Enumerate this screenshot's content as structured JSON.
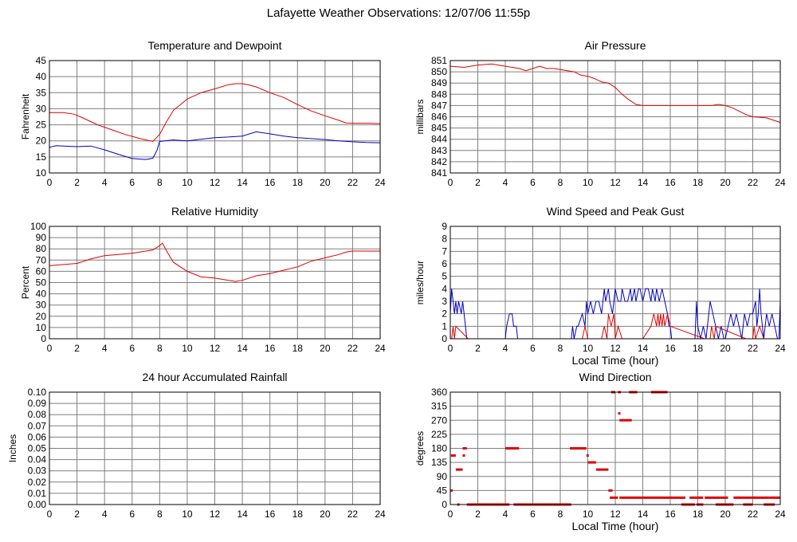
{
  "title": "Lafayette Weather Observations: 12/07/06 11:55p",
  "colors": {
    "red": "#e00000",
    "blue": "#0000c0",
    "grid": "#7f7f7f"
  },
  "chart_data": [
    {
      "id": "temp",
      "type": "line",
      "title": "Temperature and Dewpoint",
      "xlabel": "",
      "ylabel": "Fahrenheit",
      "xlim": [
        0,
        24
      ],
      "ylim": [
        10,
        45
      ],
      "xticks": [
        0,
        2,
        4,
        6,
        8,
        10,
        12,
        14,
        16,
        18,
        20,
        22,
        24
      ],
      "yticks": [
        10,
        15,
        20,
        25,
        30,
        35,
        40,
        45
      ],
      "ytick_labels": [
        "10",
        "15",
        "20",
        "25",
        "30",
        "35",
        "40",
        "45"
      ],
      "grid": true,
      "series": [
        {
          "color": "red",
          "x": [
            0,
            1,
            1.8,
            2.5,
            3.5,
            4.5,
            5.5,
            6.5,
            7.5,
            8,
            8.5,
            9,
            10,
            11,
            12,
            13,
            13.5,
            14,
            14.5,
            15,
            16,
            17,
            18,
            19,
            20,
            21,
            21.5,
            22,
            23,
            24
          ],
          "y": [
            28.8,
            28.8,
            28.3,
            27,
            25,
            23.5,
            22,
            20.8,
            19.8,
            22,
            26,
            29.5,
            33,
            35,
            36.2,
            37.5,
            37.8,
            37.8,
            37.4,
            36.8,
            35,
            33.5,
            31.3,
            29.3,
            27.8,
            26.4,
            25.6,
            25.5,
            25.5,
            25.4
          ]
        },
        {
          "color": "blue",
          "x": [
            0,
            0.5,
            1,
            2,
            3,
            4,
            5,
            6,
            7,
            7.5,
            7.8,
            8,
            9,
            10,
            11,
            12,
            13,
            14,
            15,
            16,
            17,
            18,
            19,
            20,
            21,
            22,
            23,
            24
          ],
          "y": [
            18,
            18.5,
            18.4,
            18.2,
            18.4,
            17.2,
            15.8,
            14.5,
            14.2,
            14.6,
            17,
            19.8,
            20.3,
            20,
            20.5,
            21,
            21.2,
            21.5,
            22.8,
            22.2,
            21.5,
            21,
            20.7,
            20.4,
            20,
            19.7,
            19.5,
            19.4
          ]
        }
      ]
    },
    {
      "id": "pressure",
      "type": "line",
      "title": "Air Pressure",
      "xlabel": "",
      "ylabel": "millibars",
      "xlim": [
        0,
        24
      ],
      "ylim": [
        841,
        851
      ],
      "xticks": [
        0,
        2,
        4,
        6,
        8,
        10,
        12,
        14,
        16,
        18,
        20,
        22,
        24
      ],
      "yticks": [
        841,
        842,
        843,
        844,
        845,
        846,
        847,
        848,
        849,
        850,
        851
      ],
      "ytick_labels": [
        "841",
        "842",
        "843",
        "844",
        "845",
        "846",
        "847",
        "848",
        "849",
        "850",
        "851"
      ],
      "grid": true,
      "series": [
        {
          "color": "red",
          "x": [
            0,
            1,
            2,
            3,
            4,
            5,
            5.5,
            6,
            6.5,
            7,
            7.5,
            8,
            9,
            9.5,
            10,
            10.5,
            11,
            11.5,
            12,
            12.5,
            13,
            13.5,
            14,
            15,
            16,
            17,
            18,
            19,
            19.5,
            20,
            20.5,
            21,
            21.5,
            22,
            23,
            24
          ],
          "y": [
            850.5,
            850.4,
            850.6,
            850.7,
            850.5,
            850.3,
            850.1,
            850.3,
            850.5,
            850.3,
            850.3,
            850.2,
            850,
            849.7,
            849.6,
            849.4,
            849.1,
            849,
            848.6,
            848,
            847.5,
            847.1,
            847,
            847,
            847,
            847,
            847,
            847,
            847.1,
            847,
            846.8,
            846.5,
            846.2,
            846,
            845.9,
            845.5
          ]
        }
      ]
    },
    {
      "id": "humidity",
      "type": "line",
      "title": "Relative Humidity",
      "xlabel": "",
      "ylabel": "Percent",
      "xlim": [
        0,
        24
      ],
      "ylim": [
        0,
        100
      ],
      "xticks": [
        0,
        2,
        4,
        6,
        8,
        10,
        12,
        14,
        16,
        18,
        20,
        22,
        24
      ],
      "yticks": [
        0,
        10,
        20,
        30,
        40,
        50,
        60,
        70,
        80,
        90,
        100
      ],
      "ytick_labels": [
        "0",
        "10",
        "20",
        "30",
        "40",
        "50",
        "60",
        "70",
        "80",
        "90",
        "100"
      ],
      "grid": true,
      "series": [
        {
          "color": "red",
          "x": [
            0,
            1,
            2,
            3,
            4,
            5,
            6,
            7,
            7.5,
            7.9,
            8.2,
            8.6,
            9,
            10,
            11,
            12,
            13,
            13.5,
            14,
            15,
            16,
            17,
            18,
            19,
            20,
            21,
            21.5,
            22,
            23,
            24
          ],
          "y": [
            65,
            66,
            67,
            71,
            74,
            75,
            76,
            78,
            79,
            82,
            85,
            76,
            68,
            60,
            55,
            54,
            52,
            51,
            52,
            56,
            58,
            61,
            64,
            69,
            72,
            75,
            77,
            78,
            78,
            78
          ]
        }
      ]
    },
    {
      "id": "wind",
      "type": "line",
      "title": "Wind Speed and Peak Gust",
      "xlabel": "Local Time (hour)",
      "ylabel": "miles/hour",
      "xlim": [
        0,
        24
      ],
      "ylim": [
        0,
        9
      ],
      "xticks": [
        0,
        2,
        4,
        6,
        8,
        10,
        12,
        14,
        16,
        18,
        20,
        22,
        24
      ],
      "yticks": [
        0,
        1,
        2,
        3,
        4,
        5,
        6,
        7,
        8,
        9
      ],
      "ytick_labels": [
        "0",
        "1",
        "2",
        "3",
        "4",
        "5",
        "6",
        "7",
        "8",
        "9"
      ],
      "grid": true,
      "series": [
        {
          "color": "blue",
          "x": [
            0,
            0.1,
            0.2,
            0.3,
            0.4,
            0.5,
            0.6,
            0.8,
            0.9,
            1,
            1.1,
            1.2,
            1.3,
            4,
            4.1,
            4.3,
            4.5,
            4.6,
            4.8,
            4.9,
            5,
            8.8,
            8.9,
            9,
            9.2,
            9.3,
            9.6,
            9.8,
            9.9,
            10,
            10.2,
            10.4,
            10.6,
            10.8,
            11,
            11.2,
            11.3,
            11.5,
            11.6,
            11.8,
            12,
            12.2,
            12.4,
            12.5,
            12.7,
            12.9,
            13.1,
            13.2,
            13.4,
            13.5,
            13.7,
            13.8,
            14,
            14.2,
            14.4,
            14.6,
            14.7,
            14.9,
            15,
            15.2,
            15.4,
            15.6,
            15.8,
            15.9,
            16,
            16.1,
            16.3,
            16.5,
            17.8,
            17.9,
            18,
            18.2,
            18.4,
            18.6,
            18.8,
            18.9,
            19.1,
            19.3,
            19.5,
            19.7,
            19.9,
            20,
            20.2,
            20.4,
            20.6,
            20.8,
            21,
            21.2,
            21.4,
            21.6,
            21.8,
            22,
            22.2,
            22.3,
            22.4,
            22.5,
            22.6,
            22.7,
            22.8,
            23,
            23.2,
            23.4,
            23.6,
            23.8,
            23.9,
            24
          ],
          "y": [
            2,
            4,
            3,
            2,
            3,
            2,
            3,
            2,
            3,
            2,
            1,
            0,
            0,
            0,
            1,
            2,
            2,
            1,
            1,
            0,
            0,
            0,
            1,
            0,
            1,
            1,
            2,
            1,
            3,
            2,
            3,
            2,
            3,
            3,
            2,
            4,
            3,
            4,
            3,
            2,
            4,
            3,
            3,
            4,
            3,
            3,
            4,
            3,
            4,
            3,
            4,
            4,
            3,
            4,
            4,
            3,
            4,
            3,
            4,
            3,
            4,
            3,
            2,
            1,
            1,
            0,
            0,
            0,
            0,
            3,
            1,
            0,
            1,
            0,
            2,
            3,
            2,
            1,
            0,
            1,
            0,
            0,
            1,
            2,
            1,
            2,
            1,
            0,
            2,
            1,
            2,
            2,
            3,
            1,
            2,
            4,
            2,
            1,
            0,
            2,
            1,
            2,
            1,
            0,
            0,
            3
          ]
        },
        {
          "color": "red",
          "x": [
            0,
            0.1,
            0.2,
            0.3,
            0.4,
            1.3,
            9.6,
            9.8,
            10,
            11,
            11.2,
            11.4,
            11.5,
            11.7,
            11.9,
            12,
            12.2,
            12.5,
            13,
            13.5,
            14,
            14.6,
            14.8,
            15,
            15.1,
            15.2,
            15.3,
            15.4,
            15.5,
            15.6,
            15.8,
            16,
            18.5,
            18.9,
            19,
            19.2,
            19.3,
            21.5,
            22,
            22.1,
            22.2,
            22.5,
            22.8,
            24
          ],
          "y": [
            0,
            0,
            1,
            0,
            1,
            0,
            0,
            1,
            0,
            0,
            1,
            0,
            2,
            1,
            2,
            0,
            1,
            0,
            0,
            0,
            0,
            1,
            2,
            1,
            2,
            1,
            2,
            1,
            2,
            1,
            2,
            1,
            0,
            0,
            1,
            0,
            1,
            0,
            0,
            1,
            0,
            1,
            0,
            0
          ]
        }
      ]
    },
    {
      "id": "rain",
      "type": "line",
      "title": "24 hour Accumulated Rainfall",
      "xlabel": "",
      "ylabel": "Inches",
      "xlim": [
        0,
        24
      ],
      "ylim": [
        0,
        0.1
      ],
      "xticks": [
        0,
        2,
        4,
        6,
        8,
        10,
        12,
        14,
        16,
        18,
        20,
        22,
        24
      ],
      "yticks": [
        0,
        0.01,
        0.02,
        0.03,
        0.04,
        0.05,
        0.06,
        0.07,
        0.08,
        0.09,
        0.1
      ],
      "ytick_labels": [
        "0.00",
        "0.01",
        "0.02",
        "0.03",
        "0.04",
        "0.05",
        "0.06",
        "0.07",
        "0.08",
        "0.09",
        "0.10"
      ],
      "grid": true,
      "series": [
        {
          "color": "red",
          "x": [
            0,
            24
          ],
          "y": [
            0,
            0
          ]
        }
      ]
    },
    {
      "id": "dir",
      "type": "scatter",
      "title": "Wind Direction",
      "xlabel": "Local Time (hour)",
      "ylabel": "degrees",
      "xlim": [
        0,
        24
      ],
      "ylim": [
        0,
        360
      ],
      "xticks": [
        0,
        2,
        4,
        6,
        8,
        10,
        12,
        14,
        16,
        18,
        20,
        22,
        24
      ],
      "yticks": [
        0,
        45,
        90,
        135,
        180,
        225,
        270,
        315,
        360
      ],
      "ytick_labels": [
        "0",
        "45",
        "90",
        "135",
        "180",
        "225",
        "270",
        "315",
        "360"
      ],
      "grid": true,
      "segments": [
        [
          0,
          0.05,
          45
        ],
        [
          0.05,
          0.4,
          157
        ],
        [
          0.4,
          0.9,
          112
        ],
        [
          0.5,
          0.55,
          0
        ],
        [
          0.9,
          1.2,
          180
        ],
        [
          0.9,
          0.95,
          157
        ],
        [
          1.2,
          4.3,
          0
        ],
        [
          4,
          5,
          180
        ],
        [
          4.6,
          8.8,
          0
        ],
        [
          8.7,
          9.9,
          180
        ],
        [
          9.9,
          10,
          157
        ],
        [
          10,
          10.6,
          135
        ],
        [
          10.6,
          11.5,
          112
        ],
        [
          11.5,
          11.8,
          45
        ],
        [
          11.6,
          11.9,
          22
        ],
        [
          11.7,
          12,
          360
        ],
        [
          11.9,
          12.2,
          22
        ],
        [
          12.2,
          12.3,
          292
        ],
        [
          12.3,
          13.2,
          270
        ],
        [
          12.2,
          12.4,
          360
        ],
        [
          13,
          13.6,
          360
        ],
        [
          14.6,
          15.8,
          360
        ],
        [
          12.3,
          16.2,
          22
        ],
        [
          16.2,
          17.1,
          22
        ],
        [
          16.8,
          17.8,
          0
        ],
        [
          17.4,
          18.4,
          22
        ],
        [
          17.9,
          18.4,
          0
        ],
        [
          18.5,
          20.2,
          22
        ],
        [
          19.3,
          20.6,
          0
        ],
        [
          20.6,
          22.5,
          22
        ],
        [
          21.3,
          22,
          0
        ],
        [
          22.5,
          23.2,
          22
        ],
        [
          22.8,
          23.6,
          0
        ],
        [
          23.2,
          24,
          22
        ]
      ]
    }
  ]
}
